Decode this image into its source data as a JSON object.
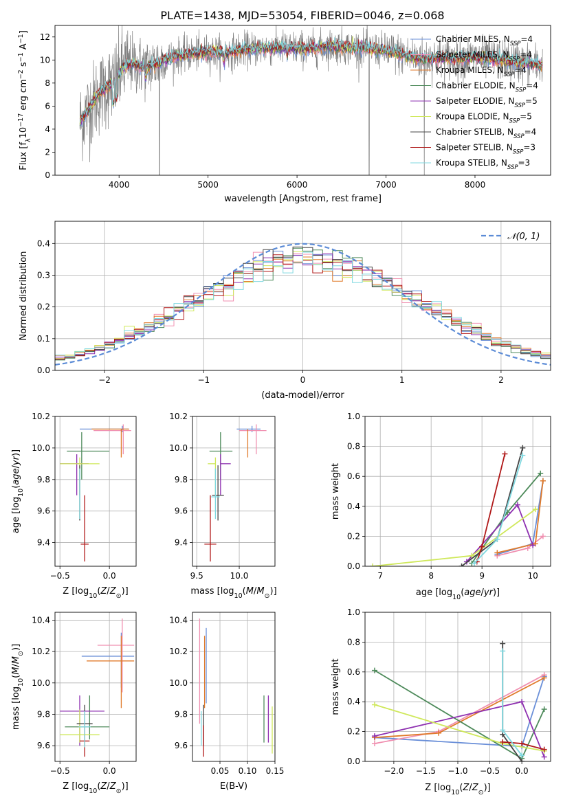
{
  "figure": {
    "title": "PLATE=1438, MJD=53054, FIBERID=0046, z=0.068"
  },
  "colors": {
    "Chabrier MILES": "#6a8fd8",
    "Salpeter MILES": "#f08fb0",
    "Kroupa MILES": "#e07a2a",
    "Chabrier ELODIE": "#4d8a5a",
    "Salpeter ELODIE": "#8e30b0",
    "Kroupa ELODIE": "#cfe85a",
    "Chabrier STELIB": "#444444",
    "Salpeter STELIB": "#b01818",
    "Kroupa STELIB": "#7fd8e0",
    "data": "#808080",
    "normal": "#5b8bd6"
  },
  "chart_data": [
    {
      "id": "spectrum",
      "type": "line",
      "title": "PLATE=1438, MJD=53054, FIBERID=0046, z=0.068",
      "xlabel": "wavelength [Angstrom, rest frame]",
      "ylabel": "Flux [f",
      "ylabel_parts": [
        "Flux [f",
        "λ",
        "10",
        "−17",
        " erg cm",
        "−2",
        " s",
        "−1",
        " A",
        "−1",
        "]"
      ],
      "xlim": [
        3280,
        8850
      ],
      "ylim": [
        0,
        13
      ],
      "xticks": [
        4000,
        5000,
        6000,
        7000,
        8000
      ],
      "yticks": [
        0,
        2,
        4,
        6,
        8,
        10,
        12
      ],
      "legend_position": "top-right",
      "legend": [
        {
          "name": "Chabrier MILES",
          "nssp": "4"
        },
        {
          "name": "Salpeter MILES",
          "nssp": "4"
        },
        {
          "name": "Kroupa MILES",
          "nssp": "4"
        },
        {
          "name": "Chabrier ELODIE",
          "nssp": "4"
        },
        {
          "name": "Salpeter ELODIE",
          "nssp": "5"
        },
        {
          "name": "Kroupa ELODIE",
          "nssp": "5"
        },
        {
          "name": "Chabrier STELIB",
          "nssp": "4"
        },
        {
          "name": "Salpeter STELIB",
          "nssp": "3"
        },
        {
          "name": "Kroupa STELIB",
          "nssp": "3"
        }
      ],
      "continuum": [
        [
          3560,
          4.6
        ],
        [
          3650,
          5.6
        ],
        [
          3750,
          6.8
        ],
        [
          3850,
          7.6
        ],
        [
          3950,
          8.0
        ],
        [
          4050,
          9.4
        ],
        [
          4150,
          9.7
        ],
        [
          4300,
          9.3
        ],
        [
          4450,
          9.8
        ],
        [
          4600,
          10.3
        ],
        [
          4800,
          10.5
        ],
        [
          5000,
          10.7
        ],
        [
          5200,
          10.6
        ],
        [
          5400,
          10.9
        ],
        [
          5600,
          11.0
        ],
        [
          5800,
          11.1
        ],
        [
          6000,
          11.0
        ],
        [
          6200,
          11.0
        ],
        [
          6400,
          11.2
        ],
        [
          6600,
          11.1
        ],
        [
          6800,
          11.0
        ],
        [
          7000,
          10.8
        ],
        [
          7200,
          10.4
        ],
        [
          7400,
          10.1
        ],
        [
          7600,
          10.2
        ],
        [
          7800,
          10.1
        ],
        [
          8000,
          10.2
        ],
        [
          8200,
          10.1
        ],
        [
          8400,
          9.9
        ],
        [
          8600,
          9.7
        ],
        [
          8760,
          9.5
        ]
      ]
    },
    {
      "id": "residuals",
      "type": "histogram",
      "xlabel": "(data-model)/error",
      "ylabel": "Normed distribution",
      "xlim": [
        -2.5,
        2.5
      ],
      "ylim": [
        0,
        0.47
      ],
      "xticks": [
        -2,
        -1,
        0,
        1,
        2
      ],
      "yticks": [
        0.0,
        0.1,
        0.2,
        0.3,
        0.4
      ],
      "legend_position": "top-right",
      "reference_curve": {
        "label": "𝒩(0, 1)",
        "mean": 0,
        "sigma": 1
      },
      "bins": {
        "start": -2.5,
        "width": 0.1,
        "count": 50
      }
    },
    {
      "id": "age-vs-Z",
      "type": "scatter",
      "xlabel": "Z [log10(Z/Z⊙)]",
      "ylabel": "age  [log10(age/yr)]",
      "xlim": [
        -0.55,
        0.27
      ],
      "ylim": [
        9.25,
        10.2
      ],
      "xticks": [
        -0.5,
        0.0
      ],
      "yticks": [
        9.4,
        9.6,
        9.8,
        10.0,
        10.2
      ],
      "errorbars": [
        {
          "model": "Chabrier MILES",
          "x": 0.13,
          "xerr": [
            0.43,
            0.06
          ],
          "y": 10.12,
          "yerr": [
            0.02,
            0.02
          ]
        },
        {
          "model": "Salpeter MILES",
          "x": 0.14,
          "xerr": [
            0.3,
            0.08
          ],
          "y": 10.11,
          "yerr": [
            0.15,
            0.04
          ]
        },
        {
          "model": "Kroupa MILES",
          "x": 0.12,
          "xerr": [
            0.3,
            0.08
          ],
          "y": 10.12,
          "yerr": [
            0.18,
            0.0
          ]
        },
        {
          "model": "Chabrier ELODIE",
          "x": -0.28,
          "xerr": [
            0.15,
            0.28
          ],
          "y": 9.98,
          "yerr": [
            0.18,
            0.12
          ]
        },
        {
          "model": "Salpeter ELODIE",
          "x": -0.33,
          "xerr": [
            0.17,
            0.12
          ],
          "y": 9.9,
          "yerr": [
            0.2,
            0.06
          ]
        },
        {
          "model": "Kroupa ELODIE",
          "x": -0.3,
          "xerr": [
            0.2,
            0.2
          ],
          "y": 9.9,
          "yerr": [
            0.2,
            0.04
          ]
        },
        {
          "model": "Chabrier STELIB",
          "x": -0.3,
          "xerr": [
            0.0,
            0.0
          ],
          "y": 9.7,
          "yerr": [
            0.16,
            0.19
          ]
        },
        {
          "model": "Salpeter STELIB",
          "x": -0.25,
          "xerr": [
            0.04,
            0.04
          ],
          "y": 9.39,
          "yerr": [
            0.11,
            0.31
          ]
        },
        {
          "model": "Kroupa STELIB",
          "x": -0.3,
          "xerr": [
            0.0,
            0.0
          ],
          "y": 9.69,
          "yerr": [
            0.14,
            0.18
          ]
        }
      ]
    },
    {
      "id": "age-vs-mass",
      "type": "scatter",
      "xlabel": "mass [log10(M/M⊙)]",
      "ylabel": "",
      "xlim": [
        9.45,
        10.42
      ],
      "ylim": [
        9.25,
        10.2
      ],
      "xticks": [
        9.5,
        10.0
      ],
      "yticks": [
        9.4,
        9.6,
        9.8,
        10.0,
        10.2
      ],
      "errorbars": [
        {
          "model": "Chabrier MILES",
          "x": 10.15,
          "xerr": [
            0.18,
            0.1
          ],
          "y": 10.12,
          "yerr": [
            0.02,
            0.02
          ]
        },
        {
          "model": "Salpeter MILES",
          "x": 10.2,
          "xerr": [
            0.2,
            0.12
          ],
          "y": 10.11,
          "yerr": [
            0.15,
            0.04
          ]
        },
        {
          "model": "Kroupa MILES",
          "x": 10.1,
          "xerr": [
            0.0,
            0.0
          ],
          "y": 10.12,
          "yerr": [
            0.18,
            0.0
          ]
        },
        {
          "model": "Chabrier ELODIE",
          "x": 9.78,
          "xerr": [
            0.13,
            0.14
          ],
          "y": 9.98,
          "yerr": [
            0.18,
            0.12
          ]
        },
        {
          "model": "Salpeter ELODIE",
          "x": 9.78,
          "xerr": [
            0.0,
            0.12
          ],
          "y": 9.9,
          "yerr": [
            0.2,
            0.06
          ]
        },
        {
          "model": "Kroupa ELODIE",
          "x": 9.72,
          "xerr": [
            0.09,
            0.0
          ],
          "y": 9.9,
          "yerr": [
            0.2,
            0.04
          ]
        },
        {
          "model": "Chabrier STELIB",
          "x": 9.75,
          "xerr": [
            0.07,
            0.07
          ],
          "y": 9.7,
          "yerr": [
            0.16,
            0.19
          ]
        },
        {
          "model": "Salpeter STELIB",
          "x": 9.66,
          "xerr": [
            0.07,
            0.07
          ],
          "y": 9.39,
          "yerr": [
            0.11,
            0.31
          ]
        },
        {
          "model": "Kroupa STELIB",
          "x": 9.72,
          "xerr": [
            0.05,
            0.05
          ],
          "y": 9.69,
          "yerr": [
            0.14,
            0.18
          ]
        }
      ]
    },
    {
      "id": "weight-vs-age",
      "type": "line",
      "xlabel": "age  [log10(age/yr)]",
      "ylabel": "mass weight",
      "xlim": [
        6.7,
        10.35
      ],
      "ylim": [
        0,
        1.0
      ],
      "xticks": [
        7,
        8,
        9,
        10
      ],
      "yticks": [
        0.0,
        0.2,
        0.4,
        0.6,
        0.8,
        1.0
      ],
      "grid": true,
      "series": [
        {
          "model": "Chabrier MILES",
          "points": [
            [
              9.3,
              0.08
            ],
            [
              10.0,
              0.15
            ],
            [
              10.2,
              0.57
            ]
          ]
        },
        {
          "model": "Salpeter MILES",
          "points": [
            [
              9.3,
              0.07
            ],
            [
              9.9,
              0.12
            ],
            [
              10.2,
              0.2
            ]
          ]
        },
        {
          "model": "Kroupa MILES",
          "points": [
            [
              9.3,
              0.09
            ],
            [
              10.05,
              0.15
            ],
            [
              10.2,
              0.57
            ]
          ]
        },
        {
          "model": "Chabrier ELODIE",
          "points": [
            [
              8.8,
              0.02
            ],
            [
              9.5,
              0.36
            ],
            [
              10.15,
              0.62
            ]
          ]
        },
        {
          "model": "Salpeter ELODIE",
          "points": [
            [
              8.7,
              0.03
            ],
            [
              9.7,
              0.41
            ],
            [
              10.0,
              0.14
            ]
          ]
        },
        {
          "model": "Kroupa ELODIE",
          "points": [
            [
              6.85,
              0.0
            ],
            [
              8.8,
              0.07
            ],
            [
              10.05,
              0.38
            ]
          ]
        },
        {
          "model": "Chabrier STELIB",
          "points": [
            [
              8.6,
              0.0
            ],
            [
              9.3,
              0.18
            ],
            [
              9.8,
              0.79
            ]
          ]
        },
        {
          "model": "Salpeter STELIB",
          "points": [
            [
              8.9,
              0.03
            ],
            [
              9.0,
              0.13
            ],
            [
              9.45,
              0.75
            ]
          ]
        },
        {
          "model": "Kroupa STELIB",
          "points": [
            [
              8.85,
              0.02
            ],
            [
              9.3,
              0.18
            ],
            [
              9.8,
              0.74
            ]
          ]
        }
      ]
    },
    {
      "id": "mass-vs-Z",
      "type": "scatter",
      "xlabel": "Z [log10(Z/Z⊙)]",
      "ylabel": "mass [log10(M/M⊙)]",
      "xlim": [
        -0.55,
        0.27
      ],
      "ylim": [
        9.5,
        10.45
      ],
      "xticks": [
        -0.5,
        0.0
      ],
      "yticks": [
        9.6,
        9.8,
        10.0,
        10.2,
        10.4
      ],
      "errorbars": [
        {
          "model": "Chabrier MILES",
          "x": 0.12,
          "xerr": [
            0.4,
            0.13
          ],
          "y": 10.17,
          "yerr": [
            0.2,
            0.15
          ]
        },
        {
          "model": "Salpeter MILES",
          "x": 0.13,
          "xerr": [
            0.25,
            0.12
          ],
          "y": 10.24,
          "yerr": [
            0.3,
            0.17
          ]
        },
        {
          "model": "Kroupa MILES",
          "x": 0.12,
          "xerr": [
            0.35,
            0.13
          ],
          "y": 10.14,
          "yerr": [
            0.3,
            0.16
          ]
        },
        {
          "model": "Chabrier ELODIE",
          "x": -0.2,
          "xerr": [
            0.25,
            0.2
          ],
          "y": 9.72,
          "yerr": [
            0.08,
            0.2
          ]
        },
        {
          "model": "Salpeter ELODIE",
          "x": -0.3,
          "xerr": [
            0.2,
            0.25
          ],
          "y": 9.82,
          "yerr": [
            0.22,
            0.1
          ]
        },
        {
          "model": "Kroupa ELODIE",
          "x": -0.3,
          "xerr": [
            0.2,
            0.2
          ],
          "y": 9.67,
          "yerr": [
            0.05,
            0.16
          ]
        },
        {
          "model": "Chabrier STELIB",
          "x": -0.25,
          "xerr": [
            0.08,
            0.08
          ],
          "y": 9.74,
          "yerr": [
            0.14,
            0.12
          ]
        },
        {
          "model": "Salpeter STELIB",
          "x": -0.25,
          "xerr": [
            0.05,
            0.05
          ],
          "y": 9.63,
          "yerr": [
            0.1,
            0.1
          ]
        },
        {
          "model": "Kroupa STELIB",
          "x": -0.25,
          "xerr": [
            0.06,
            0.06
          ],
          "y": 9.72,
          "yerr": [
            0.13,
            0.1
          ]
        }
      ]
    },
    {
      "id": "mass-vs-EBV",
      "type": "scatter",
      "xlabel": "E(B-V)",
      "ylabel": "",
      "xlim": [
        0.0,
        0.15
      ],
      "ylim": [
        9.5,
        10.45
      ],
      "xticks": [
        0.05,
        0.1,
        0.15
      ],
      "yticks": [
        9.6,
        9.8,
        10.0,
        10.2,
        10.4
      ],
      "errorbars": [
        {
          "model": "Chabrier MILES",
          "x": 0.025,
          "y": 10.17,
          "yerr": [
            0.3,
            0.18
          ]
        },
        {
          "model": "Salpeter MILES",
          "x": 0.013,
          "y": 10.24,
          "yerr": [
            0.5,
            0.17
          ]
        },
        {
          "model": "Kroupa MILES",
          "x": 0.022,
          "y": 10.14,
          "yerr": [
            0.3,
            0.16
          ]
        },
        {
          "model": "Chabrier ELODIE",
          "x": 0.13,
          "y": 9.72,
          "yerr": [
            0.1,
            0.2
          ]
        },
        {
          "model": "Salpeter ELODIE",
          "x": 0.138,
          "y": 9.82,
          "yerr": [
            0.2,
            0.1
          ]
        },
        {
          "model": "Kroupa ELODIE",
          "x": 0.145,
          "y": 9.67,
          "yerr": [
            0.12,
            0.18
          ]
        },
        {
          "model": "Chabrier STELIB",
          "x": 0.02,
          "y": 9.74,
          "yerr": [
            0.14,
            0.12
          ]
        },
        {
          "model": "Salpeter STELIB",
          "x": 0.02,
          "y": 9.63,
          "yerr": [
            0.1,
            0.1
          ]
        },
        {
          "model": "Kroupa STELIB",
          "x": 0.016,
          "y": 9.72,
          "yerr": [
            0.12,
            0.1
          ]
        }
      ]
    },
    {
      "id": "weight-vs-Z",
      "type": "line",
      "xlabel": "Z [log10(Z/Z⊙)]",
      "ylabel": "mass weight",
      "xlim": [
        -2.45,
        0.45
      ],
      "ylim": [
        0,
        1.0
      ],
      "xticks": [
        -2.0,
        -1.5,
        -1.0,
        -0.5,
        0.0
      ],
      "yticks": [
        0.0,
        0.2,
        0.4,
        0.6,
        0.8,
        1.0
      ],
      "grid": true,
      "series": [
        {
          "model": "Chabrier MILES",
          "points": [
            [
              -2.3,
              0.16
            ],
            [
              0.0,
              0.1
            ],
            [
              0.35,
              0.57
            ]
          ]
        },
        {
          "model": "Salpeter MILES",
          "points": [
            [
              -2.3,
              0.12
            ],
            [
              -1.3,
              0.2
            ],
            [
              0.35,
              0.58
            ]
          ]
        },
        {
          "model": "Kroupa MILES",
          "points": [
            [
              -2.3,
              0.16
            ],
            [
              -1.3,
              0.19
            ],
            [
              0.35,
              0.56
            ]
          ]
        },
        {
          "model": "Chabrier ELODIE",
          "points": [
            [
              -2.3,
              0.61
            ],
            [
              0.0,
              0.02
            ],
            [
              0.35,
              0.35
            ]
          ]
        },
        {
          "model": "Salpeter ELODIE",
          "points": [
            [
              -2.3,
              0.17
            ],
            [
              0.0,
              0.4
            ],
            [
              0.35,
              0.03
            ]
          ]
        },
        {
          "model": "Kroupa ELODIE",
          "points": [
            [
              -2.3,
              0.38
            ],
            [
              -0.3,
              0.12
            ],
            [
              0.35,
              0.07
            ]
          ]
        },
        {
          "model": "Chabrier STELIB",
          "points": [
            [
              -0.3,
              0.79
            ],
            [
              -0.3,
              0.18
            ],
            [
              0.0,
              0.0
            ]
          ]
        },
        {
          "model": "Salpeter STELIB",
          "points": [
            [
              -0.3,
              0.13
            ],
            [
              0.0,
              0.12
            ],
            [
              0.35,
              0.08
            ]
          ]
        },
        {
          "model": "Kroupa STELIB",
          "points": [
            [
              -0.3,
              0.74
            ],
            [
              -0.3,
              0.21
            ],
            [
              0.0,
              0.04
            ]
          ]
        }
      ]
    }
  ]
}
